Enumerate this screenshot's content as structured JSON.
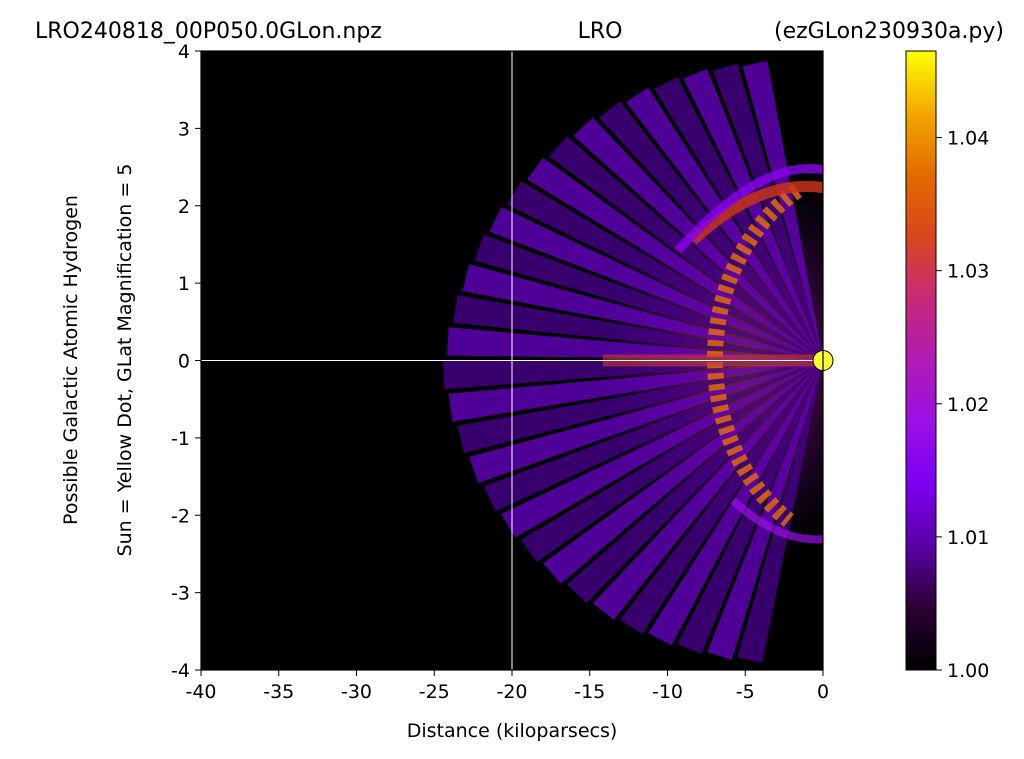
{
  "chart_data": {
    "type": "heatmap",
    "title_left": "LRO240818_00P050.0GLon.npz",
    "title_center": "LRO",
    "title_right": "(ezGLon230930a.py)",
    "xlabel": "Distance (kiloparsecs)",
    "ylabel_line1": "Possible Galactic Atomic Hydrogen",
    "ylabel_line2": "Sun = Yellow Dot, GLat Magnification = 5",
    "xlim": [
      -40,
      0
    ],
    "ylim": [
      -4,
      4
    ],
    "x_ticks": [
      -40,
      -35,
      -30,
      -25,
      -20,
      -15,
      -10,
      -5,
      0
    ],
    "x_tick_labels": [
      "-40",
      "-35",
      "-30",
      "-25",
      "-20",
      "-15",
      "-10",
      "-5",
      "0"
    ],
    "y_ticks": [
      -4,
      -3,
      -2,
      -1,
      0,
      1,
      2,
      3,
      4
    ],
    "y_tick_labels": [
      "-4",
      "-3",
      "-2",
      "-1",
      "0",
      "1",
      "2",
      "3",
      "4"
    ],
    "crosshair": {
      "x": -20,
      "y": 0
    },
    "sun_marker": {
      "x": 0,
      "y": 0,
      "color": "#ffff33"
    },
    "colormap": "gnuplot",
    "colorbar": {
      "min": 1.0,
      "max": 1.0465,
      "ticks": [
        1.0,
        1.01,
        1.02,
        1.03,
        1.04
      ],
      "tick_labels": [
        "1.00",
        "1.01",
        "1.02",
        "1.03",
        "1.04"
      ]
    },
    "grid": false
  }
}
